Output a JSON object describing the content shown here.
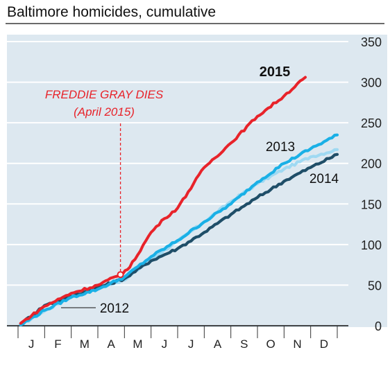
{
  "chart_data": {
    "type": "line",
    "title": "Baltimore homicides, cumulative",
    "xlabel": "",
    "ylabel": "",
    "months": [
      "J",
      "F",
      "M",
      "A",
      "M",
      "J",
      "J",
      "A",
      "S",
      "O",
      "N",
      "D"
    ],
    "x_range": [
      0,
      12
    ],
    "ylim": [
      0,
      350
    ],
    "yticks": [
      0,
      50,
      100,
      150,
      200,
      250,
      300,
      350
    ],
    "grid": true,
    "y_axis_side": "right",
    "annotation": {
      "line1": "FREDDIE GRAY DIES",
      "line2": "(April 2015)",
      "x": 3.85,
      "y": 63
    },
    "series": [
      {
        "name": "2012",
        "color": "#9fd9f2",
        "x": [
          0.1,
          1,
          2,
          3,
          4,
          5,
          6,
          7,
          8,
          9,
          10,
          11,
          12
        ],
        "y": [
          1,
          18,
          36,
          48,
          56,
          82,
          104,
          128,
          153,
          175,
          193,
          208,
          217
        ]
      },
      {
        "name": "2014",
        "color": "#1f4e68",
        "x": [
          0.1,
          1,
          2,
          3,
          4,
          5,
          6,
          7,
          8,
          9,
          10,
          11,
          12
        ],
        "y": [
          2,
          25,
          36,
          47,
          58,
          80,
          95,
          115,
          137,
          158,
          178,
          195,
          211
        ]
      },
      {
        "name": "2013",
        "color": "#1ab0e6",
        "x": [
          0.1,
          1,
          2,
          3,
          4,
          5,
          6,
          7,
          8,
          9,
          10,
          11,
          12
        ],
        "y": [
          1,
          19,
          35,
          45,
          60,
          85,
          105,
          128,
          150,
          177,
          200,
          218,
          235
        ]
      },
      {
        "name": "2015",
        "color": "#e8232a",
        "x": [
          0.1,
          1,
          2,
          3,
          3.85,
          4.2,
          5,
          5.5,
          6,
          7,
          8,
          9,
          10,
          10.8
        ],
        "y": [
          3,
          24,
          40,
          50,
          63,
          72,
          115,
          132,
          145,
          195,
          225,
          258,
          283,
          306
        ]
      }
    ]
  }
}
